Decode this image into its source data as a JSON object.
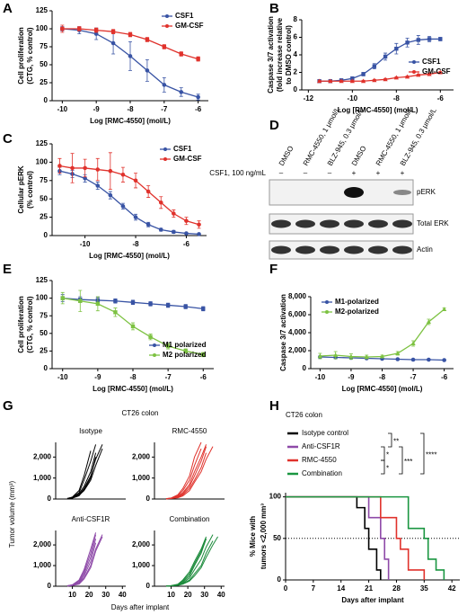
{
  "figure": {
    "panel_labels": [
      "A",
      "B",
      "C",
      "D",
      "E",
      "F",
      "G",
      "H"
    ]
  },
  "panel_g": {
    "title": "CT26 colon",
    "ylabel": "Tumor volume (mm³)",
    "xlabel": "Days after implant"
  },
  "blot": {
    "lane_labels": [
      "DMSO",
      "RMC-4550, 1 μmol/L",
      "BLZ-945, 0.3 μmol/L",
      "DMSO",
      "RMC-4550, 1 μmol/L",
      "BLZ-945, 0.3 μmol/L"
    ],
    "treatment_label": "CSF1, 100 ng/mL",
    "treatment_signs": [
      "–",
      "–",
      "–",
      "+",
      "+",
      "+"
    ],
    "bands": [
      "pERK",
      "Total ERK",
      "Actin"
    ]
  },
  "chart_data": [
    {
      "type": "line",
      "xlabel": "Log [RMC-4550] (mol/L)",
      "ylabel": [
        "Cell proliferation",
        "(CTG, % control)"
      ],
      "xlim": [
        -10.3,
        -5.7
      ],
      "xticks": [
        -10,
        -9,
        -8,
        -7,
        -6
      ],
      "ylim": [
        0,
        125
      ],
      "yticks": [
        0,
        25,
        50,
        75,
        100,
        125
      ],
      "legend": "upper right",
      "x": [
        -10,
        -9.5,
        -9,
        -8.5,
        -8,
        -7.5,
        -7,
        -6.5,
        -6
      ],
      "series": [
        {
          "name": "CSF1",
          "color": "#3853a4",
          "marker": "circle",
          "values": [
            100,
            98,
            93,
            80,
            62,
            42,
            22,
            12,
            5
          ],
          "errors": [
            3,
            5,
            8,
            15,
            20,
            15,
            10,
            6,
            4
          ]
        },
        {
          "name": "GM-CSF",
          "color": "#e0322c",
          "marker": "square",
          "values": [
            100,
            100,
            98,
            96,
            92,
            85,
            75,
            65,
            58
          ],
          "errors": [
            5,
            3,
            3,
            3,
            3,
            3,
            3,
            3,
            3
          ]
        }
      ]
    },
    {
      "type": "line",
      "xlabel": "Log [RMC-4550] (mol/L)",
      "ylabel": [
        "Caspase 3/7 activation",
        "(fold increase relative",
        "to DMSO control)"
      ],
      "xlim": [
        -12.3,
        -5.4
      ],
      "xticks": [
        -12,
        -10,
        -8,
        -6
      ],
      "ylim": [
        0,
        8
      ],
      "yticks": [
        0,
        2,
        4,
        6,
        8
      ],
      "legend": "center right",
      "x": [
        -11.5,
        -11,
        -10.5,
        -10,
        -9.5,
        -9,
        -8.5,
        -8,
        -7.5,
        -7,
        -6.5,
        -6
      ],
      "series": [
        {
          "name": "CSF1",
          "color": "#3853a4",
          "marker": "square",
          "values": [
            1,
            1,
            1.1,
            1.3,
            1.8,
            2.7,
            3.8,
            4.7,
            5.4,
            5.7,
            5.8,
            5.8
          ],
          "errors": [
            0.1,
            0.1,
            0.1,
            0.2,
            0.2,
            0.3,
            0.4,
            0.6,
            0.5,
            0.5,
            0.3,
            0.2
          ]
        },
        {
          "name": "GM-CSF",
          "color": "#e0322c",
          "marker": "triangle",
          "values": [
            1,
            1,
            1,
            1,
            1,
            1.1,
            1.2,
            1.4,
            1.5,
            1.7,
            1.8,
            2
          ],
          "errors": [
            0.1,
            0.1,
            0.1,
            0.1,
            0.1,
            0.1,
            0.1,
            0.1,
            0.1,
            0.1,
            0.1,
            0.1
          ]
        }
      ]
    },
    {
      "type": "line",
      "xlabel": "Log [RMC-4550] (mol/L)",
      "ylabel": [
        "Cellular pERK",
        "(% control)"
      ],
      "xlim": [
        -11.3,
        -5.2
      ],
      "xticks": [
        -10,
        -8,
        -6
      ],
      "ylim": [
        0,
        125
      ],
      "yticks": [
        0,
        25,
        50,
        75,
        100,
        125
      ],
      "legend": "upper right",
      "x": [
        -11,
        -10.5,
        -10,
        -9.5,
        -9,
        -8.5,
        -8,
        -7.5,
        -7,
        -6.5,
        -6,
        -5.5
      ],
      "series": [
        {
          "name": "CSF1",
          "color": "#3853a4",
          "marker": "circle",
          "values": [
            88,
            84,
            78,
            68,
            55,
            40,
            25,
            15,
            8,
            5,
            3,
            2
          ],
          "errors": [
            5,
            5,
            5,
            5,
            5,
            4,
            4,
            3,
            2,
            2,
            1,
            1
          ]
        },
        {
          "name": "GM-CSF",
          "color": "#e0322c",
          "marker": "circle",
          "values": [
            95,
            92,
            92,
            90,
            88,
            83,
            75,
            60,
            45,
            30,
            20,
            15
          ],
          "errors": [
            10,
            20,
            12,
            15,
            25,
            10,
            10,
            8,
            8,
            5,
            5,
            5
          ]
        }
      ]
    },
    {
      "type": "line",
      "xlabel": "Log [RMC-4550] (mol/L)",
      "ylabel": [
        "Cell proliferation",
        "(CTG, % control)"
      ],
      "xlim": [
        -10.3,
        -5.7
      ],
      "xticks": [
        -10,
        -9,
        -8,
        -7,
        -6
      ],
      "ylim": [
        0,
        125
      ],
      "yticks": [
        0,
        25,
        50,
        75,
        100,
        125
      ],
      "legend": "lower right",
      "x": [
        -10,
        -9.5,
        -9,
        -8.5,
        -8,
        -7.5,
        -7,
        -6.5,
        -6
      ],
      "series": [
        {
          "name": "M1 polarized",
          "color": "#3853a4",
          "marker": "square",
          "values": [
            100,
            98,
            97,
            96,
            94,
            92,
            90,
            88,
            85
          ],
          "errors": [
            5,
            4,
            4,
            3,
            3,
            3,
            3,
            3,
            3
          ]
        },
        {
          "name": "M2 polarized",
          "color": "#7dc242",
          "marker": "square",
          "values": [
            100,
            96,
            92,
            80,
            60,
            45,
            32,
            25,
            20
          ],
          "errors": [
            8,
            15,
            10,
            6,
            5,
            4,
            4,
            3,
            3
          ]
        }
      ]
    },
    {
      "type": "line",
      "xlabel": "Log [RMC-4550] (mol/L)",
      "ylabel": [
        "Caspase 3/7 activation"
      ],
      "xlim": [
        -10.3,
        -5.7
      ],
      "xticks": [
        -10,
        -9,
        -8,
        -7,
        -6
      ],
      "ylim": [
        0,
        8000
      ],
      "yticks": [
        0,
        {
          "value": 2000,
          "label": "2,000"
        },
        {
          "value": 4000,
          "label": "4,000"
        },
        {
          "value": 6000,
          "label": "6,000"
        },
        {
          "value": 8000,
          "label": "8,000"
        }
      ],
      "legend": "upper left",
      "x": [
        -10,
        -9.5,
        -9,
        -8.5,
        -8,
        -7.5,
        -7,
        -6.5,
        -6
      ],
      "series": [
        {
          "name": "M1-polarized",
          "color": "#3853a4",
          "marker": "circle",
          "values": [
            1300,
            1250,
            1200,
            1150,
            1100,
            1050,
            1000,
            1000,
            950
          ],
          "errors": [
            100,
            150,
            100,
            80,
            80,
            60,
            60,
            60,
            60
          ]
        },
        {
          "name": "M2-polarized",
          "color": "#7dc242",
          "marker": "triangle",
          "values": [
            1400,
            1500,
            1350,
            1300,
            1350,
            1700,
            2800,
            5200,
            6600
          ],
          "errors": [
            300,
            400,
            300,
            200,
            150,
            200,
            300,
            300,
            150
          ]
        }
      ]
    },
    {
      "type": "line",
      "title": "Isotype",
      "xlim": [
        0,
        42
      ],
      "ylim": [
        0,
        2700
      ],
      "yticks": [
        0,
        {
          "value": 1000,
          "label": "1,000"
        },
        {
          "value": 2000,
          "label": "2,000"
        }
      ],
      "x": [
        7,
        10,
        14,
        17,
        21,
        24,
        28,
        31,
        35,
        38
      ],
      "series": [
        {
          "color": "#000000",
          "values": [
            20,
            80,
            300,
            900,
            1800,
            2600,
            null,
            null,
            null,
            null
          ]
        },
        {
          "color": "#000000",
          "values": [
            15,
            60,
            250,
            600,
            1300,
            2200,
            null,
            null,
            null,
            null
          ]
        },
        {
          "color": "#000000",
          "values": [
            20,
            50,
            200,
            500,
            1100,
            1900,
            2600,
            null,
            null,
            null
          ]
        },
        {
          "color": "#000000",
          "values": [
            10,
            40,
            150,
            450,
            1000,
            2000,
            null,
            null,
            null,
            null
          ]
        },
        {
          "color": "#000000",
          "values": [
            25,
            90,
            400,
            1100,
            2300,
            null,
            null,
            null,
            null,
            null
          ]
        },
        {
          "color": "#000000",
          "values": [
            15,
            50,
            180,
            400,
            900,
            1600,
            2400,
            null,
            null,
            null
          ]
        }
      ]
    },
    {
      "type": "line",
      "title": "RMC-4550",
      "xlim": [
        0,
        42
      ],
      "ylim": [
        0,
        2700
      ],
      "yticks": [
        0,
        {
          "value": 1000,
          "label": "1,000"
        },
        {
          "value": 2000,
          "label": "2,000"
        }
      ],
      "x": [
        7,
        10,
        14,
        17,
        21,
        24,
        28,
        31,
        35,
        38
      ],
      "series": [
        {
          "color": "#e0322c",
          "values": [
            10,
            40,
            150,
            400,
            900,
            1600,
            2400,
            null,
            null,
            null
          ]
        },
        {
          "color": "#e0322c",
          "values": [
            15,
            40,
            120,
            300,
            700,
            1300,
            2000,
            2600,
            null,
            null
          ]
        },
        {
          "color": "#e0322c",
          "values": [
            10,
            30,
            100,
            250,
            600,
            1100,
            1800,
            2500,
            null,
            null
          ]
        },
        {
          "color": "#e0322c",
          "values": [
            10,
            30,
            80,
            200,
            500,
            900,
            1500,
            2200,
            null,
            null
          ]
        },
        {
          "color": "#e0322c",
          "values": [
            15,
            50,
            200,
            500,
            1100,
            2000,
            2700,
            null,
            null,
            null
          ]
        },
        {
          "color": "#e0322c",
          "values": [
            10,
            20,
            60,
            150,
            400,
            800,
            1300,
            1900,
            2500,
            null
          ]
        }
      ]
    },
    {
      "type": "line",
      "title": "Anti-CSF1R",
      "xlim": [
        0,
        42
      ],
      "xticks": [
        10,
        20,
        30,
        40
      ],
      "ylim": [
        0,
        2700
      ],
      "yticks": [
        0,
        {
          "value": 1000,
          "label": "1,000"
        },
        {
          "value": 2000,
          "label": "2,000"
        }
      ],
      "x": [
        7,
        10,
        14,
        17,
        21,
        24,
        28,
        31,
        35,
        38
      ],
      "series": [
        {
          "color": "#8e4aa8",
          "values": [
            15,
            50,
            200,
            600,
            1400,
            2300,
            null,
            null,
            null,
            null
          ]
        },
        {
          "color": "#8e4aa8",
          "values": [
            20,
            60,
            250,
            700,
            1600,
            2500,
            null,
            null,
            null,
            null
          ]
        },
        {
          "color": "#8e4aa8",
          "values": [
            10,
            40,
            150,
            400,
            1000,
            1800,
            2500,
            null,
            null,
            null
          ]
        },
        {
          "color": "#8e4aa8",
          "values": [
            15,
            50,
            150,
            500,
            1200,
            2100,
            null,
            null,
            null,
            null
          ]
        },
        {
          "color": "#8e4aa8",
          "values": [
            10,
            30,
            100,
            350,
            900,
            1700,
            2400,
            null,
            null,
            null
          ]
        },
        {
          "color": "#8e4aa8",
          "values": [
            20,
            70,
            300,
            800,
            1800,
            2600,
            null,
            null,
            null,
            null
          ]
        }
      ]
    },
    {
      "type": "line",
      "title": "Combination",
      "xlim": [
        0,
        42
      ],
      "xticks": [
        10,
        20,
        30,
        40
      ],
      "ylim": [
        0,
        2700
      ],
      "yticks": [
        0,
        {
          "value": 1000,
          "label": "1,000"
        },
        {
          "value": 2000,
          "label": "2,000"
        }
      ],
      "x": [
        7,
        10,
        14,
        17,
        21,
        24,
        28,
        31,
        35,
        38
      ],
      "series": [
        {
          "color": "#1a8a3a",
          "values": [
            10,
            30,
            100,
            300,
            700,
            1200,
            1800,
            2400,
            null,
            null
          ]
        },
        {
          "color": "#1a8a3a",
          "values": [
            10,
            20,
            60,
            150,
            400,
            800,
            1300,
            1900,
            2500,
            null
          ]
        },
        {
          "color": "#1a8a3a",
          "values": [
            5,
            20,
            50,
            120,
            300,
            600,
            1000,
            1600,
            2200,
            null
          ]
        },
        {
          "color": "#1a8a3a",
          "values": [
            10,
            30,
            80,
            250,
            600,
            1100,
            1700,
            2300,
            null,
            null
          ]
        },
        {
          "color": "#1a8a3a",
          "values": [
            5,
            15,
            40,
            100,
            250,
            500,
            900,
            1400,
            2000,
            2400
          ]
        },
        {
          "color": "#1a8a3a",
          "values": [
            10,
            25,
            70,
            200,
            500,
            1000,
            1600,
            2300,
            null,
            null
          ]
        }
      ]
    },
    {
      "type": "step",
      "title": "CT26 colon",
      "xlabel": "Days after implant",
      "ylabel": [
        "% Mice with",
        "tumors <2,000 mm³"
      ],
      "xlim": [
        0,
        44
      ],
      "xticks": [
        0,
        7,
        14,
        21,
        28,
        35,
        42
      ],
      "ylim": [
        0,
        105
      ],
      "yticks": [
        0,
        50,
        100
      ],
      "reference_line": 50,
      "legend": "top outside",
      "significance": [
        "**",
        "*",
        "*",
        "***",
        "****"
      ],
      "series": [
        {
          "name": "Isotype control",
          "color": "#000000",
          "x": [
            0,
            18,
            20,
            21,
            23,
            24
          ],
          "values": [
            100,
            87,
            62,
            37,
            12,
            0
          ]
        },
        {
          "name": "Anti-CSF1R",
          "color": "#8e4aa8",
          "x": [
            0,
            21,
            24,
            25,
            26
          ],
          "values": [
            100,
            75,
            50,
            25,
            0
          ]
        },
        {
          "name": "RMC-4550",
          "color": "#e0322c",
          "x": [
            0,
            24,
            28,
            29,
            31,
            35
          ],
          "values": [
            100,
            75,
            50,
            37,
            12,
            0
          ]
        },
        {
          "name": "Combination",
          "color": "#1a9641",
          "x": [
            0,
            31,
            35,
            36,
            38,
            40
          ],
          "values": [
            100,
            62,
            50,
            25,
            12,
            0
          ]
        }
      ]
    }
  ]
}
